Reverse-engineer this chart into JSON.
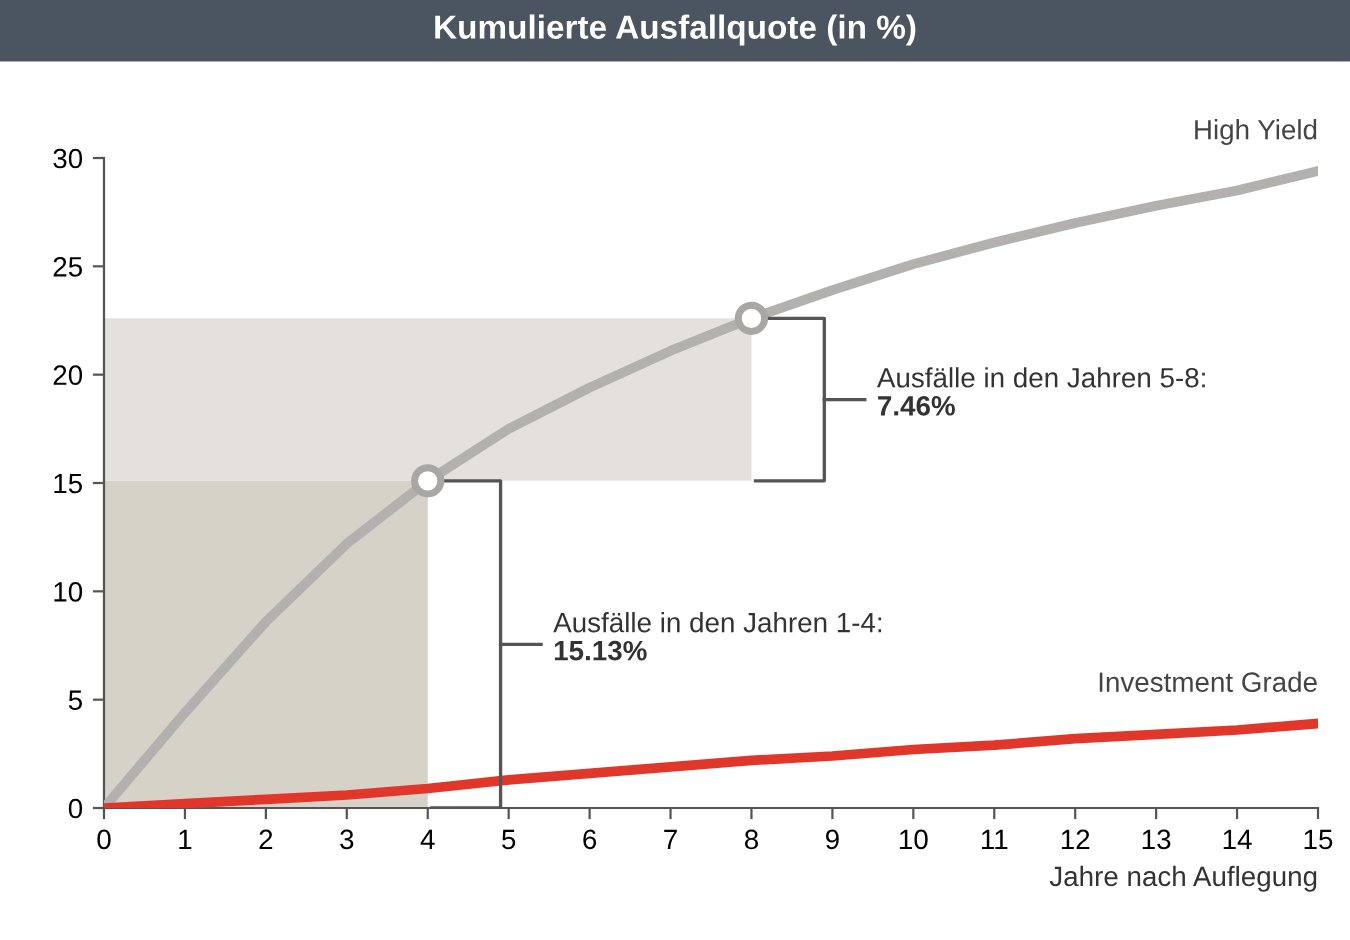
{
  "chart_data": {
    "type": "line",
    "title": "Kumulierte Ausfallquote (in %)",
    "xlabel": "Jahre nach Auflegung",
    "x": [
      0,
      1,
      2,
      3,
      4,
      5,
      6,
      7,
      8,
      9,
      10,
      11,
      12,
      13,
      14,
      15
    ],
    "series": [
      {
        "name": "High Yield",
        "color": "#b3b1ae",
        "values": [
          0,
          4.4,
          8.6,
          12.2,
          15.1,
          17.5,
          19.4,
          21.1,
          22.6,
          23.9,
          25.1,
          26.1,
          27.0,
          27.8,
          28.5,
          29.4
        ]
      },
      {
        "name": "Investment Grade",
        "color": "#e0372a",
        "values": [
          0,
          0.2,
          0.4,
          0.6,
          0.9,
          1.3,
          1.6,
          1.9,
          2.2,
          2.4,
          2.7,
          2.9,
          3.2,
          3.4,
          3.6,
          3.9
        ]
      },
      {
        "type": "scatter",
        "color": "#a9a7a4",
        "x": [
          4,
          8
        ],
        "values": [
          15.1,
          22.6
        ],
        "marker": "circle"
      }
    ],
    "bands": [
      {
        "axis": "y",
        "from": 0,
        "to": 15.1,
        "color": "#d6d2c8"
      },
      {
        "axis": "y",
        "from": 15.1,
        "to": 22.6,
        "color": "#e4e1dc"
      }
    ],
    "annotations": [
      "Ausfälle in den Jahren 1-4:\n15.13%",
      "Ausfälle in den Jahren 5-8:\n7.46%"
    ],
    "xlim": [
      0,
      15
    ],
    "ylim": [
      0,
      30
    ],
    "xticks": [
      0,
      1,
      2,
      3,
      4,
      5,
      6,
      7,
      8,
      9,
      10,
      11,
      12,
      13,
      14,
      15
    ],
    "yticks": [
      0,
      5,
      10,
      15,
      20,
      25,
      30
    ],
    "grid": false,
    "legend": false,
    "marker": "none",
    "line_style": "solid"
  }
}
